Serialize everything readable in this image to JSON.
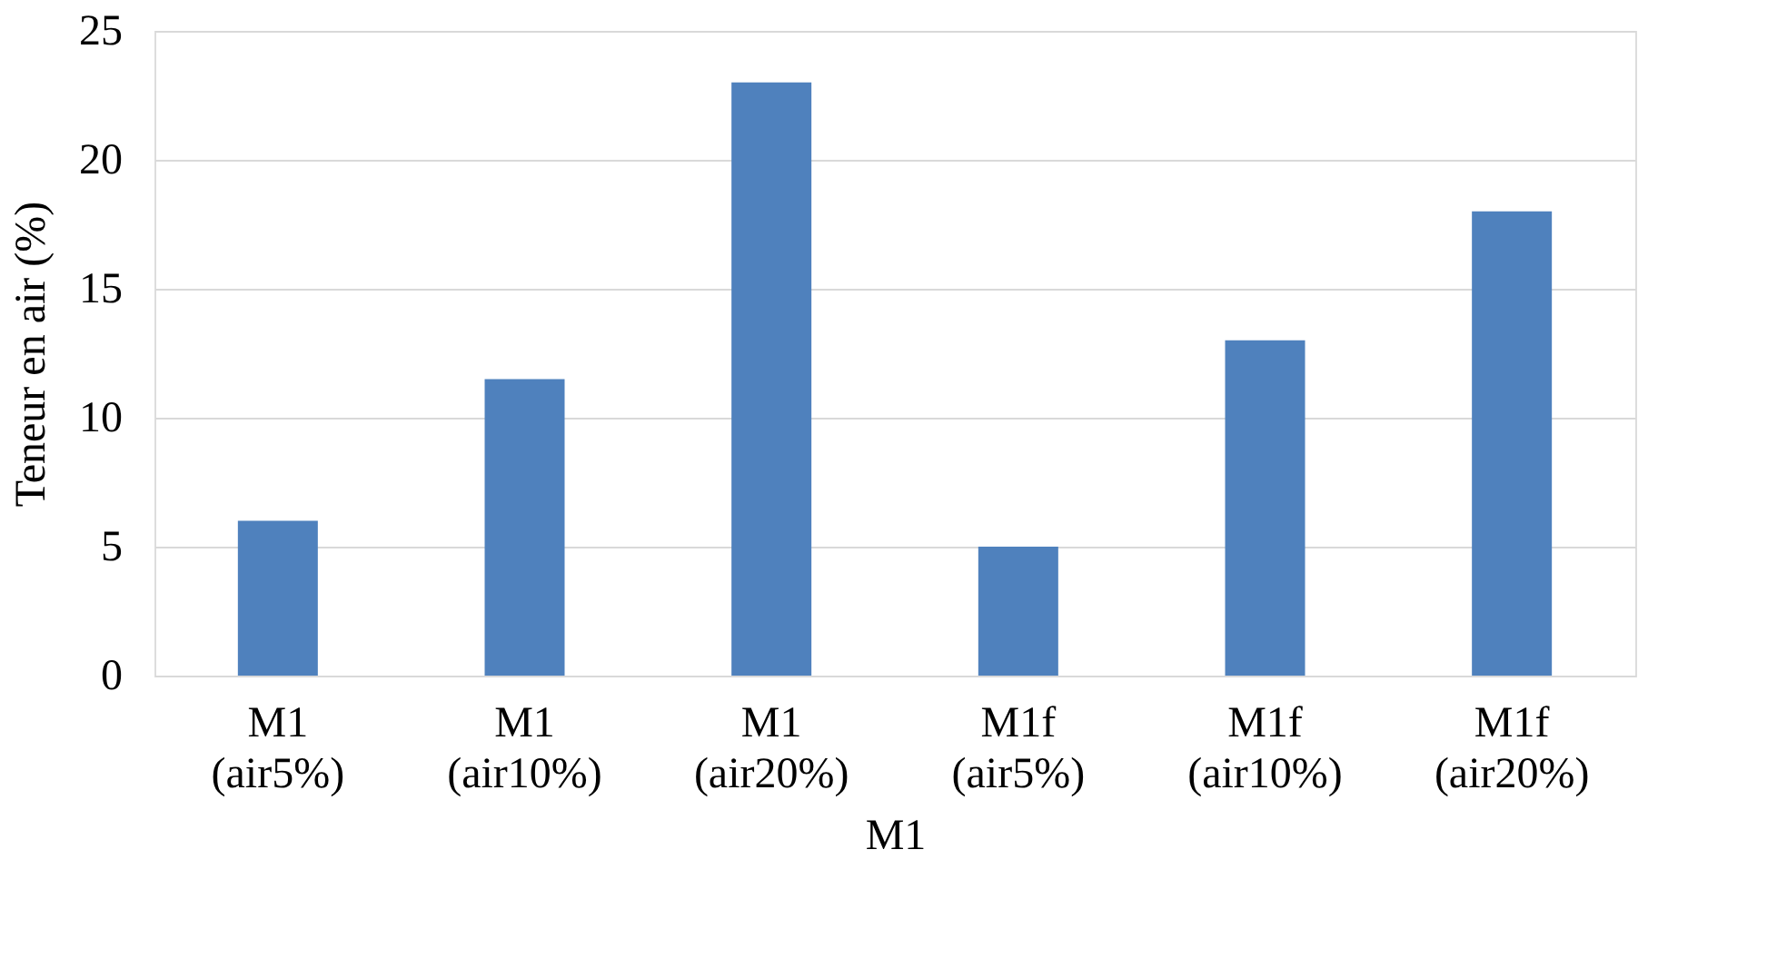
{
  "chart_data": {
    "type": "bar",
    "xlabel": "M1",
    "ylabel": "Teneur en air (%)",
    "categories": [
      "M1 (air5%)",
      "M1 (air10%)",
      "M1 (air20%)",
      "M1f (air5%)",
      "M1f (air10%)",
      "M1f (air20%)"
    ],
    "values": [
      6,
      11.5,
      23,
      5,
      13,
      18
    ],
    "color": "#4f81bd",
    "ylim": [
      0,
      25
    ],
    "yticks": [
      0,
      5,
      10,
      15,
      20,
      25
    ],
    "grid": "y"
  }
}
